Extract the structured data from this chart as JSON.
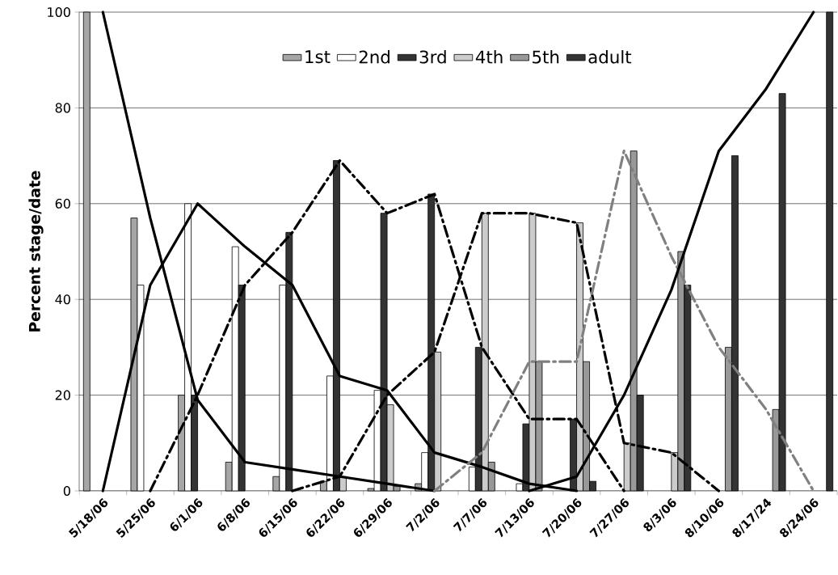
{
  "chart_data": {
    "type": "bar",
    "ylabel": "Percent stage/date",
    "categories": [
      "5/18/06",
      "5/25/06",
      "6/1/06",
      "6/8/06",
      "6/15/06",
      "6/22/06",
      "6/29/06",
      "7/2/06",
      "7/7/06",
      "7/13/06",
      "7/20/06",
      "7/27/06",
      "8/3/06",
      "8/10/06",
      "8/17/24",
      "8/24/06"
    ],
    "series": [
      {
        "name": "1st",
        "color": "#a6a6a6",
        "values": [
          100,
          57,
          20,
          6,
          3,
          2,
          0.5,
          1.5,
          0,
          0,
          0,
          0,
          0,
          0,
          0,
          0
        ]
      },
      {
        "name": "2nd",
        "color": "#ffffff",
        "values": [
          0,
          43,
          60,
          51,
          43,
          24,
          21,
          8,
          5,
          1.5,
          0,
          0,
          0,
          0,
          0,
          0
        ]
      },
      {
        "name": "3rd",
        "color": "#333333",
        "values": [
          0,
          0,
          20,
          43,
          54,
          69,
          58,
          62,
          30,
          14,
          15,
          0,
          0,
          0,
          0,
          0
        ]
      },
      {
        "name": "4th",
        "color": "#cccccc",
        "values": [
          0,
          0,
          0,
          0,
          0,
          3,
          18,
          29,
          58,
          58,
          56,
          10,
          8,
          0,
          0,
          0
        ]
      },
      {
        "name": "5th",
        "color": "#999999",
        "values": [
          0,
          0,
          0,
          0,
          0,
          0,
          1,
          0,
          6,
          27,
          27,
          71,
          50,
          30,
          17,
          0
        ]
      },
      {
        "name": "adult",
        "color": "#333333",
        "values": [
          0,
          0,
          0,
          0,
          0,
          0,
          0,
          0,
          0,
          0,
          2,
          20,
          43,
          70,
          83,
          100
        ]
      },
      {
        "type": "line",
        "color": "#000000",
        "line_style": "solid",
        "values": [
          100,
          57,
          19,
          6,
          4.5,
          3,
          1.5,
          0,
          null,
          null,
          null,
          null,
          null,
          null,
          null,
          null
        ]
      },
      {
        "type": "line",
        "color": "#000000",
        "line_style": "solid",
        "values": [
          0,
          43,
          60,
          51,
          43,
          24,
          21,
          8,
          5,
          1.5,
          0,
          null,
          null,
          null,
          null,
          null
        ]
      },
      {
        "type": "line",
        "color": "#000000",
        "line_style": "dashed",
        "values": [
          null,
          0,
          20,
          43,
          54,
          69,
          58,
          62,
          30,
          15,
          15,
          0,
          null,
          null,
          null,
          null
        ]
      },
      {
        "type": "line",
        "color": "#000000",
        "line_style": "dashed",
        "values": [
          null,
          null,
          null,
          null,
          0,
          3,
          20,
          29,
          58,
          58,
          56,
          10,
          8,
          0,
          null,
          null
        ]
      },
      {
        "type": "line",
        "color": "#808080",
        "line_style": "dashed",
        "values": [
          null,
          null,
          null,
          null,
          null,
          null,
          null,
          0,
          8,
          27,
          27,
          71,
          49,
          30,
          17,
          0
        ]
      },
      {
        "type": "line",
        "color": "#000000",
        "line_style": "solid",
        "values": [
          null,
          null,
          null,
          null,
          null,
          null,
          null,
          null,
          null,
          0,
          3,
          20,
          42,
          71,
          84,
          100
        ]
      }
    ],
    "ylim": [
      0,
      100
    ],
    "yticks": [
      0,
      20,
      40,
      60,
      80,
      100
    ],
    "grid": "y",
    "legend": "top"
  }
}
